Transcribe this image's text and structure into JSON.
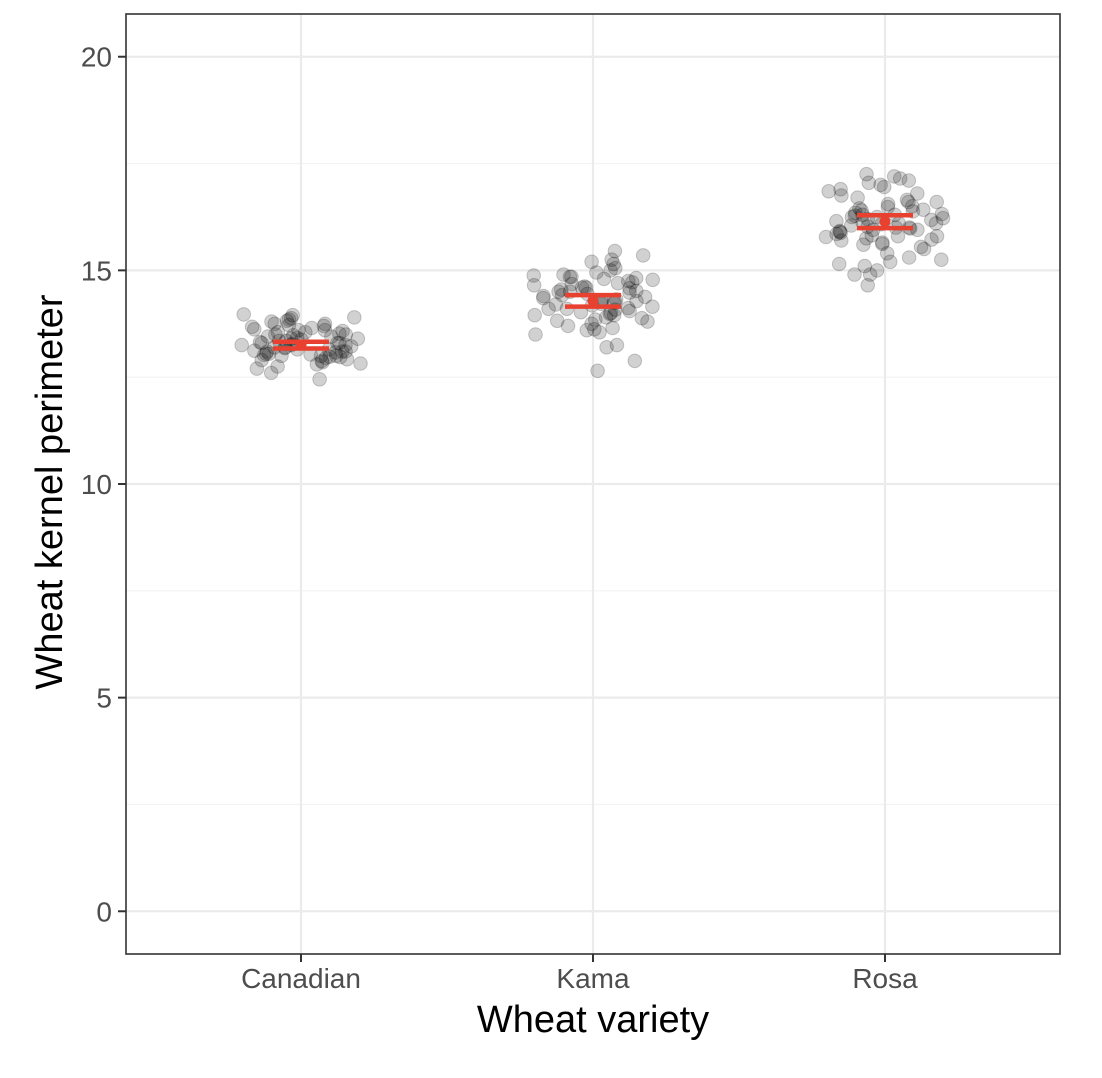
{
  "chart_data": {
    "type": "scatter",
    "xlabel": "Wheat variety",
    "ylabel": "Wheat kernel perimeter",
    "categories": [
      "Canadian",
      "Kama",
      "Rosa"
    ],
    "ylim": [
      -1,
      21
    ],
    "y_ticks": [
      0,
      5,
      10,
      15,
      20
    ],
    "grid": true,
    "legend": "none",
    "point_color": "#000000",
    "point_opacity": 0.18,
    "summary_color": "#e8412f",
    "series": [
      {
        "category": "Canadian",
        "values": [
          12.45,
          12.75,
          12.8,
          12.82,
          12.85,
          12.88,
          12.9,
          12.92,
          12.95,
          12.97,
          12.98,
          13.0,
          13.0,
          13.02,
          13.03,
          13.05,
          13.05,
          13.08,
          13.1,
          13.1,
          13.12,
          13.15,
          13.15,
          13.18,
          13.2,
          13.2,
          13.22,
          13.25,
          13.25,
          13.28,
          13.3,
          13.3,
          13.32,
          13.35,
          13.35,
          13.38,
          13.4,
          13.42,
          13.45,
          13.45,
          13.48,
          13.5,
          13.52,
          13.55,
          13.55,
          13.58,
          13.6,
          13.62,
          13.65,
          13.68,
          13.7,
          13.72,
          13.75,
          13.8,
          13.82,
          13.85,
          13.88,
          13.9,
          13.95,
          13.97,
          12.6,
          12.7,
          13.0,
          13.25,
          13.5,
          13.75,
          13.4,
          13.1,
          13.3,
          13.6
        ],
        "mean": 13.25,
        "ci": [
          13.17,
          13.33
        ]
      },
      {
        "category": "Kama",
        "values": [
          12.65,
          12.88,
          13.2,
          13.25,
          13.5,
          13.55,
          13.6,
          13.62,
          13.65,
          13.7,
          13.75,
          13.8,
          13.82,
          13.85,
          13.88,
          13.9,
          13.95,
          13.98,
          14.0,
          14.02,
          14.05,
          14.08,
          14.1,
          14.12,
          14.15,
          14.18,
          14.2,
          14.22,
          14.25,
          14.28,
          14.3,
          14.32,
          14.35,
          14.38,
          14.4,
          14.42,
          14.45,
          14.48,
          14.5,
          14.52,
          14.55,
          14.58,
          14.6,
          14.62,
          14.65,
          14.68,
          14.7,
          14.72,
          14.75,
          14.78,
          14.8,
          14.82,
          14.85,
          14.88,
          14.9,
          14.95,
          15.0,
          15.05,
          15.15,
          15.2,
          15.25,
          15.35,
          15.45,
          14.1,
          14.3,
          14.5,
          13.95,
          14.6,
          14.85,
          14.25
        ],
        "mean": 14.29,
        "ci": [
          14.15,
          14.42
        ]
      },
      {
        "category": "Rosa",
        "values": [
          14.65,
          14.9,
          14.9,
          15.1,
          15.15,
          15.2,
          15.25,
          15.3,
          15.4,
          15.5,
          15.55,
          15.6,
          15.62,
          15.65,
          15.7,
          15.72,
          15.75,
          15.78,
          15.8,
          15.82,
          15.85,
          15.88,
          15.9,
          15.92,
          15.95,
          15.98,
          16.0,
          16.02,
          16.05,
          16.08,
          16.1,
          16.12,
          16.15,
          16.18,
          16.2,
          16.22,
          16.25,
          16.28,
          16.3,
          16.32,
          16.35,
          16.38,
          16.4,
          16.42,
          16.45,
          16.48,
          16.5,
          16.55,
          16.6,
          16.65,
          16.7,
          16.75,
          16.8,
          16.85,
          16.9,
          16.95,
          17.0,
          17.05,
          17.1,
          17.15,
          17.2,
          17.25,
          15.0,
          16.25,
          16.0,
          16.3,
          15.8,
          16.6,
          16.1,
          15.95
        ],
        "mean": 16.14,
        "ci": [
          15.99,
          16.29
        ]
      }
    ]
  }
}
